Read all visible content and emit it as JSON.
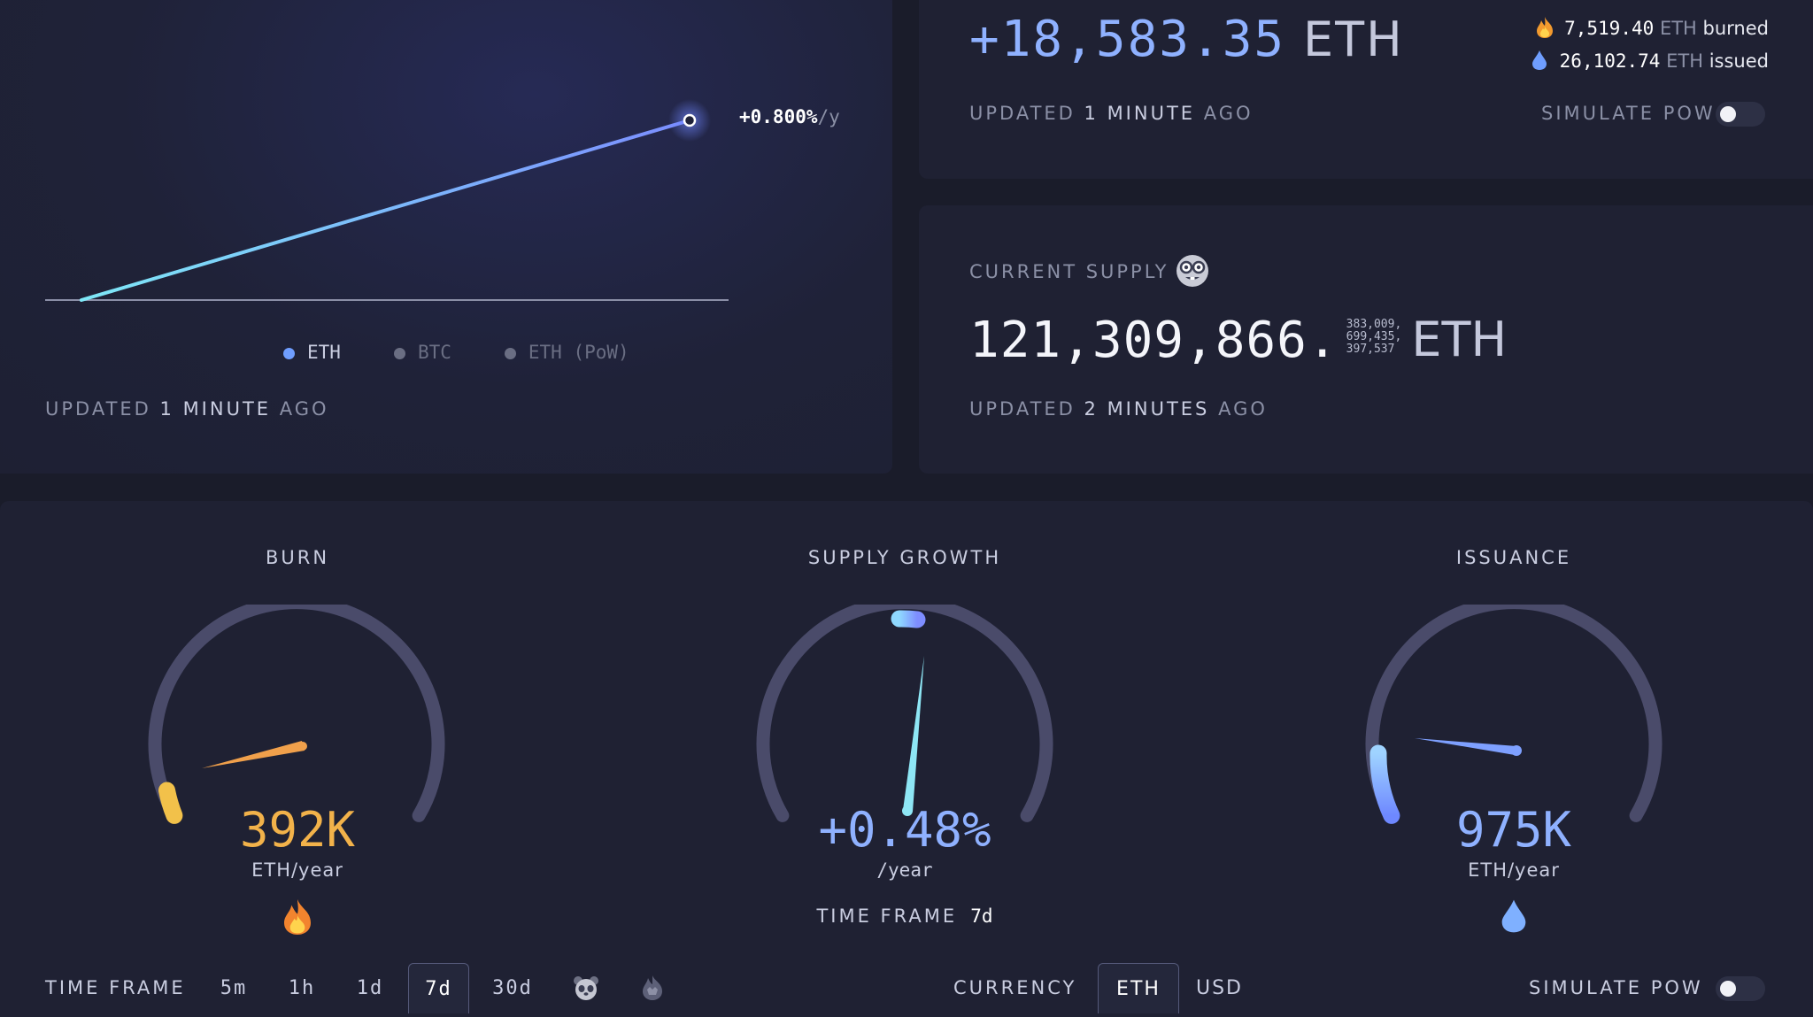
{
  "colors": {
    "background": "#1a1c2a",
    "panel": "#1f2133",
    "accent_blue": "#7fa6ff",
    "accent_cyan": "#7ee0f8",
    "burn_orange": "#f2b24a",
    "muted": "#8b90a6"
  },
  "growth_chart": {
    "rate_value": "+0.800%",
    "rate_unit": "/y",
    "legend": [
      {
        "label": "ETH",
        "color": "#6f9eff",
        "active": true
      },
      {
        "label": "BTC",
        "color": "#6a6e83",
        "active": false
      },
      {
        "label": "ETH (PoW)",
        "color": "#6a6e83",
        "active": false
      }
    ],
    "updated_prefix": "UPDATED",
    "updated_value": "1 MINUTE",
    "updated_suffix": "AGO"
  },
  "supply_change": {
    "value": "+18,583.35",
    "unit": "ETH",
    "burned_value": "7,519.40",
    "burned_unit": "ETH",
    "burned_label": "burned",
    "issued_value": "26,102.74",
    "issued_unit": "ETH",
    "issued_label": "issued",
    "updated_prefix": "UPDATED",
    "updated_value": "1 MINUTE",
    "updated_suffix": "AGO",
    "simulate_pow_label": "SIMULATE PoW",
    "simulate_pow_on": false,
    "fire_icon": "fire-icon",
    "drop_icon": "water-drop-icon"
  },
  "current_supply": {
    "title": "CURRENT SUPPLY",
    "icon": "nerd-face-icon",
    "value_main": "121,309,866.",
    "decimals_line1": "383,009,",
    "decimals_line2": "699,435,",
    "decimals_line3": "397,537",
    "unit": "ETH",
    "updated_prefix": "UPDATED",
    "updated_value": "2 MINUTES",
    "updated_suffix": "AGO"
  },
  "gauges": {
    "burn": {
      "title": "BURN",
      "value": "392K",
      "unit": "ETH/year",
      "icon": "fire-icon",
      "fraction": 0.12,
      "needle_fraction": 0.2,
      "color": "#f2b24a"
    },
    "supply_growth": {
      "title": "SUPPLY GROWTH",
      "value": "+0.48%",
      "unit": "/year",
      "timeframe_label": "TIME FRAME",
      "timeframe_value": "7d",
      "fraction": 0.52,
      "needle_fraction": 0.53,
      "color": "#7ee0f8"
    },
    "issuance": {
      "title": "ISSUANCE",
      "value": "975K",
      "unit": "ETH/year",
      "icon": "water-drop-icon",
      "fraction": 0.13,
      "needle_fraction": 0.28,
      "color": "#7fa6ff"
    }
  },
  "footer": {
    "timeframe_label": "TIME FRAME",
    "timeframes": [
      "5m",
      "1h",
      "1d",
      "7d",
      "30d"
    ],
    "timeframe_active": "7d",
    "extra_icons": [
      "panda-icon",
      "ultrasound-bat-icon"
    ],
    "currency_label": "CURRENCY",
    "currencies": [
      "ETH",
      "USD"
    ],
    "currency_active": "ETH",
    "simulate_pow_label": "SIMULATE PoW",
    "simulate_pow_on": false
  }
}
